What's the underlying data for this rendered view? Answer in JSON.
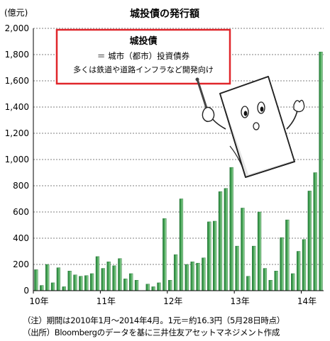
{
  "chart_data": {
    "type": "bar",
    "title": "城投債の発行額",
    "ylabel": "(億元)",
    "ylim": [
      0,
      2000
    ],
    "yticks": [
      0,
      200,
      400,
      600,
      800,
      1000,
      1200,
      1400,
      1600,
      1800,
      2000
    ],
    "ytick_labels": [
      "0",
      "200",
      "400",
      "600",
      "800",
      "1,000",
      "1,200",
      "1,400",
      "1,600",
      "1,800",
      "2,000"
    ],
    "grid": true,
    "x_tick_labels": [
      {
        "label": "10年",
        "after_month": 0
      },
      {
        "label": "11年",
        "after_month": 12
      },
      {
        "label": "12年",
        "after_month": 24
      },
      {
        "label": "13年",
        "after_month": 36
      },
      {
        "label": "14年",
        "after_month": 48
      }
    ],
    "period": "2010年1月〜2014年4月",
    "values": [
      160,
      40,
      200,
      60,
      175,
      30,
      150,
      120,
      110,
      115,
      130,
      260,
      170,
      220,
      190,
      245,
      90,
      130,
      80,
      0,
      50,
      30,
      60,
      550,
      80,
      275,
      700,
      200,
      220,
      210,
      250,
      525,
      530,
      755,
      780,
      940,
      340,
      630,
      110,
      340,
      600,
      170,
      80,
      150,
      405,
      540,
      130,
      300,
      390,
      760,
      900,
      1820
    ],
    "colors": {
      "bar_dark": "#1f7a33",
      "bar_mid": "#4daa5c",
      "bar_light": "#a6dcaa",
      "grid": "#444444",
      "callout_border": "#e0262b"
    }
  },
  "callout": {
    "title": "城投債",
    "line1": "＝ 城市（都市）投資債券",
    "line2": "多くは鉄道や道路インフラなど開発向け"
  },
  "notes": {
    "note1": "（注）期間は2010年1月〜2014年4月。1元＝約16.3円（5月28日時点）",
    "note2": "（出所）Bloombergのデータを基に三井住友アセットマネジメント作成"
  }
}
